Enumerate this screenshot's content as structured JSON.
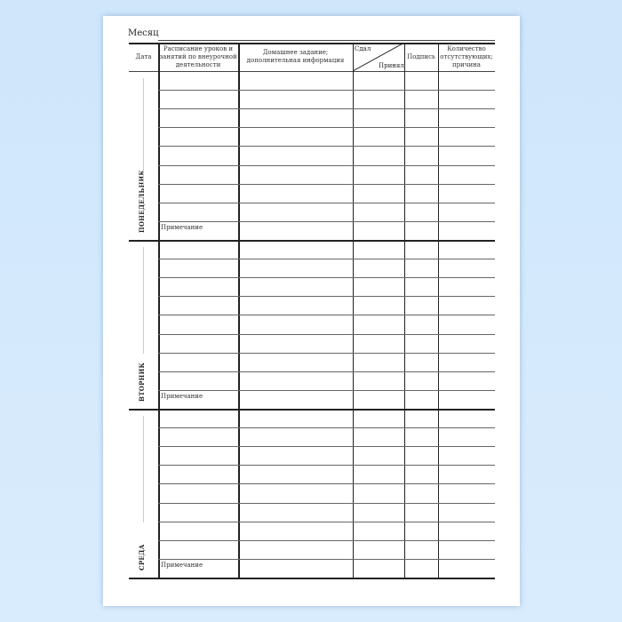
{
  "month_label": "Месяц",
  "headers": {
    "date": "Дата",
    "schedule": "Расписание уроков и занятий по внеурочной деятельности",
    "homework": "Домашнее задание; дополнительная информация",
    "submitted": "Сдал",
    "accepted": "Принял",
    "signature": "Подпись",
    "absent": "Количество отсутствующих; причина"
  },
  "days": [
    {
      "name": "ПОНЕДЕЛЬНИК",
      "note": "Примечание"
    },
    {
      "name": "ВТОРНИК",
      "note": "Примечание"
    },
    {
      "name": "СРЕДА",
      "note": "Примечание"
    }
  ]
}
